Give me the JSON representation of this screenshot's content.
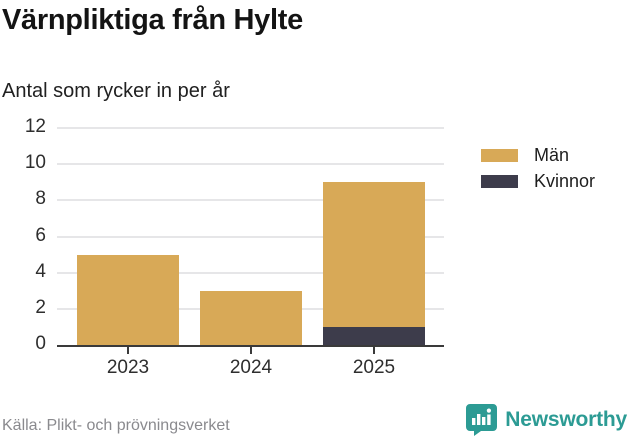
{
  "header": {
    "title": "Värnpliktiga från Hylte",
    "subtitle": "Antal som rycker in per år"
  },
  "chart_data": {
    "type": "bar",
    "stacked": true,
    "title": "Värnpliktiga från Hylte",
    "subtitle": "Antal som rycker in per år",
    "categories": [
      "2023",
      "2024",
      "2025"
    ],
    "series": [
      {
        "name": "Män",
        "color": "#D8A957",
        "values": [
          5,
          3,
          8
        ]
      },
      {
        "name": "Kvinnor",
        "color": "#3D3C4B",
        "values": [
          0,
          0,
          1
        ]
      }
    ],
    "totals": [
      5,
      3,
      9
    ],
    "xlabel": "",
    "ylabel": "",
    "ylim": [
      0,
      12
    ],
    "yticks": [
      0,
      2,
      4,
      6,
      8,
      10,
      12
    ],
    "grid": true,
    "legend_position": "right",
    "stack_order_bottom_to_top": [
      "Kvinnor",
      "Män"
    ]
  },
  "colors": {
    "men": "#D8A957",
    "women": "#3D3C4B",
    "grid": "#E6E6E8",
    "axis": "#3A3A3A",
    "tick_text": "#2E2E2E",
    "source_text": "#8A8A8E",
    "brand_teal": "#2C9B94"
  },
  "footer": {
    "source": "Källa: Plikt- och prövningsverket",
    "brand": "Newsworthy"
  }
}
